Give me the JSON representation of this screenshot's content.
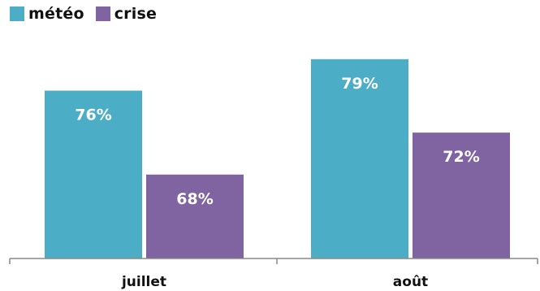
{
  "chart_data": {
    "type": "bar",
    "categories": [
      "juillet",
      "août"
    ],
    "series": [
      {
        "name": "météo",
        "values": [
          76,
          79
        ],
        "color": "#4BAEC6"
      },
      {
        "name": "crise",
        "values": [
          68,
          72
        ],
        "color": "#8063A1"
      }
    ],
    "value_labels": [
      [
        "76%",
        "79%"
      ],
      [
        "68%",
        "72%"
      ]
    ],
    "ylim": [
      60,
      81
    ],
    "grid": false,
    "legend": "top-left",
    "title": "",
    "xlabel": "",
    "ylabel": ""
  }
}
